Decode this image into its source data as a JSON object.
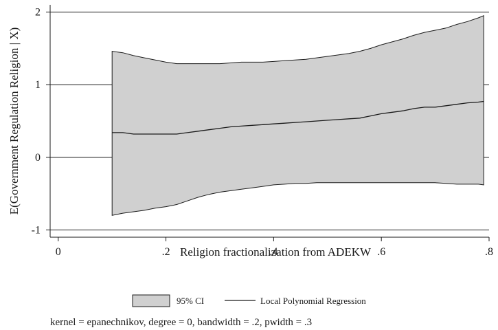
{
  "chart_data": {
    "type": "area",
    "xlabel": "Religion fractionalization from ADEKW",
    "ylabel": "E(Government Regulation Religion | X)",
    "xlim": [
      -0.015,
      0.8
    ],
    "ylim": [
      -1.1,
      2.1
    ],
    "x_ticks": [
      0,
      0.2,
      0.4,
      0.6,
      0.8
    ],
    "x_tick_labels": [
      "0",
      ".2",
      ".4",
      ".6",
      ".8"
    ],
    "y_ticks": [
      -1,
      0,
      1,
      2
    ],
    "y_tick_labels": [
      "-1",
      "0",
      "1",
      "2"
    ],
    "grid": "horizontal",
    "legend_position": "bottom",
    "legend": [
      {
        "name": "95% CI",
        "kind": "band",
        "color": "#d0d0d0"
      },
      {
        "name": "Local Polynomial Regression",
        "kind": "line",
        "color": "#1a1a1a"
      }
    ],
    "note": "kernel = epanechnikov, degree = 0, bandwidth = .2, pwidth = .3",
    "series": [
      {
        "name": "Local Polynomial Regression",
        "x": [
          0.1,
          0.12,
          0.14,
          0.16,
          0.18,
          0.2,
          0.22,
          0.24,
          0.26,
          0.28,
          0.3,
          0.32,
          0.34,
          0.36,
          0.38,
          0.4,
          0.42,
          0.44,
          0.46,
          0.48,
          0.5,
          0.52,
          0.54,
          0.56,
          0.58,
          0.6,
          0.62,
          0.64,
          0.66,
          0.68,
          0.7,
          0.72,
          0.74,
          0.76,
          0.78,
          0.79
        ],
        "y": [
          0.34,
          0.34,
          0.32,
          0.32,
          0.32,
          0.32,
          0.32,
          0.34,
          0.36,
          0.38,
          0.4,
          0.42,
          0.43,
          0.44,
          0.45,
          0.46,
          0.47,
          0.48,
          0.49,
          0.5,
          0.51,
          0.52,
          0.53,
          0.54,
          0.57,
          0.6,
          0.62,
          0.64,
          0.67,
          0.69,
          0.69,
          0.71,
          0.73,
          0.75,
          0.76,
          0.77
        ]
      },
      {
        "name": "95% CI upper",
        "x": [
          0.1,
          0.12,
          0.14,
          0.16,
          0.18,
          0.2,
          0.22,
          0.24,
          0.26,
          0.28,
          0.3,
          0.32,
          0.34,
          0.36,
          0.38,
          0.4,
          0.42,
          0.44,
          0.46,
          0.48,
          0.5,
          0.52,
          0.54,
          0.56,
          0.58,
          0.6,
          0.62,
          0.64,
          0.66,
          0.68,
          0.7,
          0.72,
          0.74,
          0.76,
          0.78,
          0.79
        ],
        "y": [
          1.46,
          1.44,
          1.4,
          1.37,
          1.34,
          1.31,
          1.29,
          1.29,
          1.29,
          1.29,
          1.29,
          1.3,
          1.31,
          1.31,
          1.31,
          1.32,
          1.33,
          1.34,
          1.35,
          1.37,
          1.39,
          1.41,
          1.43,
          1.46,
          1.5,
          1.55,
          1.59,
          1.63,
          1.68,
          1.72,
          1.75,
          1.78,
          1.83,
          1.87,
          1.92,
          1.95
        ]
      },
      {
        "name": "95% CI lower",
        "x": [
          0.1,
          0.12,
          0.14,
          0.16,
          0.18,
          0.2,
          0.22,
          0.24,
          0.26,
          0.28,
          0.3,
          0.32,
          0.34,
          0.36,
          0.38,
          0.4,
          0.42,
          0.44,
          0.46,
          0.48,
          0.5,
          0.52,
          0.54,
          0.56,
          0.58,
          0.6,
          0.62,
          0.64,
          0.66,
          0.68,
          0.7,
          0.72,
          0.74,
          0.76,
          0.78,
          0.79
        ],
        "y": [
          -0.8,
          -0.77,
          -0.75,
          -0.73,
          -0.7,
          -0.68,
          -0.65,
          -0.6,
          -0.55,
          -0.51,
          -0.48,
          -0.46,
          -0.44,
          -0.42,
          -0.4,
          -0.38,
          -0.37,
          -0.36,
          -0.36,
          -0.35,
          -0.35,
          -0.35,
          -0.35,
          -0.35,
          -0.35,
          -0.35,
          -0.35,
          -0.35,
          -0.35,
          -0.35,
          -0.35,
          -0.36,
          -0.37,
          -0.37,
          -0.37,
          -0.38
        ]
      }
    ]
  }
}
